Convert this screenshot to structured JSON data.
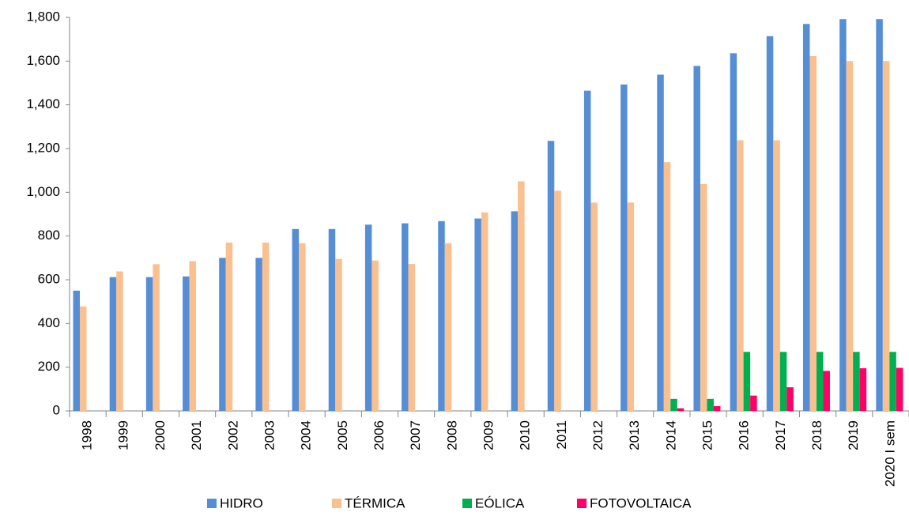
{
  "chart_data": {
    "type": "bar",
    "categories": [
      "1998",
      "1999",
      "2000",
      "2001",
      "2002",
      "2003",
      "2004",
      "2005",
      "2006",
      "2007",
      "2008",
      "2009",
      "2010",
      "2011",
      "2012",
      "2013",
      "2014",
      "2015",
      "2016",
      "2017",
      "2018",
      "2019",
      "2020 I sem"
    ],
    "series": [
      {
        "name": "HIDRO",
        "color": "#558ed5",
        "values": [
          550,
          612,
          612,
          615,
          700,
          700,
          832,
          832,
          852,
          858,
          868,
          880,
          913,
          1235,
          1465,
          1493,
          1538,
          1578,
          1636,
          1714,
          1770,
          1792,
          1792
        ]
      },
      {
        "name": "TÉRMICA",
        "color": "#fac08f",
        "values": [
          478,
          638,
          671,
          685,
          770,
          770,
          767,
          695,
          688,
          672,
          767,
          908,
          1050,
          1007,
          953,
          953,
          1138,
          1038,
          1238,
          1238,
          1623,
          1600,
          1600
        ]
      },
      {
        "name": "EÓLICA",
        "color": "#00b050",
        "values": [
          null,
          null,
          null,
          null,
          null,
          null,
          null,
          null,
          null,
          null,
          null,
          null,
          null,
          null,
          null,
          null,
          55,
          55,
          270,
          270,
          270,
          270,
          270
        ]
      },
      {
        "name": "FOTOVOLTAICA",
        "color": "#ff0066",
        "values": [
          null,
          null,
          null,
          null,
          null,
          null,
          null,
          null,
          null,
          null,
          null,
          null,
          null,
          null,
          null,
          null,
          12,
          22,
          70,
          108,
          183,
          195,
          197
        ]
      }
    ],
    "ylim": [
      0,
      1800
    ],
    "yticks": [
      0,
      200,
      400,
      600,
      800,
      {
        "value": 1000,
        "label": "1,000"
      },
      {
        "value": 1200,
        "label": "1,200"
      },
      {
        "value": 1400,
        "label": "1,400"
      },
      {
        "value": 1600,
        "label": "1,600"
      },
      {
        "value": 1800,
        "label": "1,800"
      }
    ],
    "legend": "bottom"
  }
}
